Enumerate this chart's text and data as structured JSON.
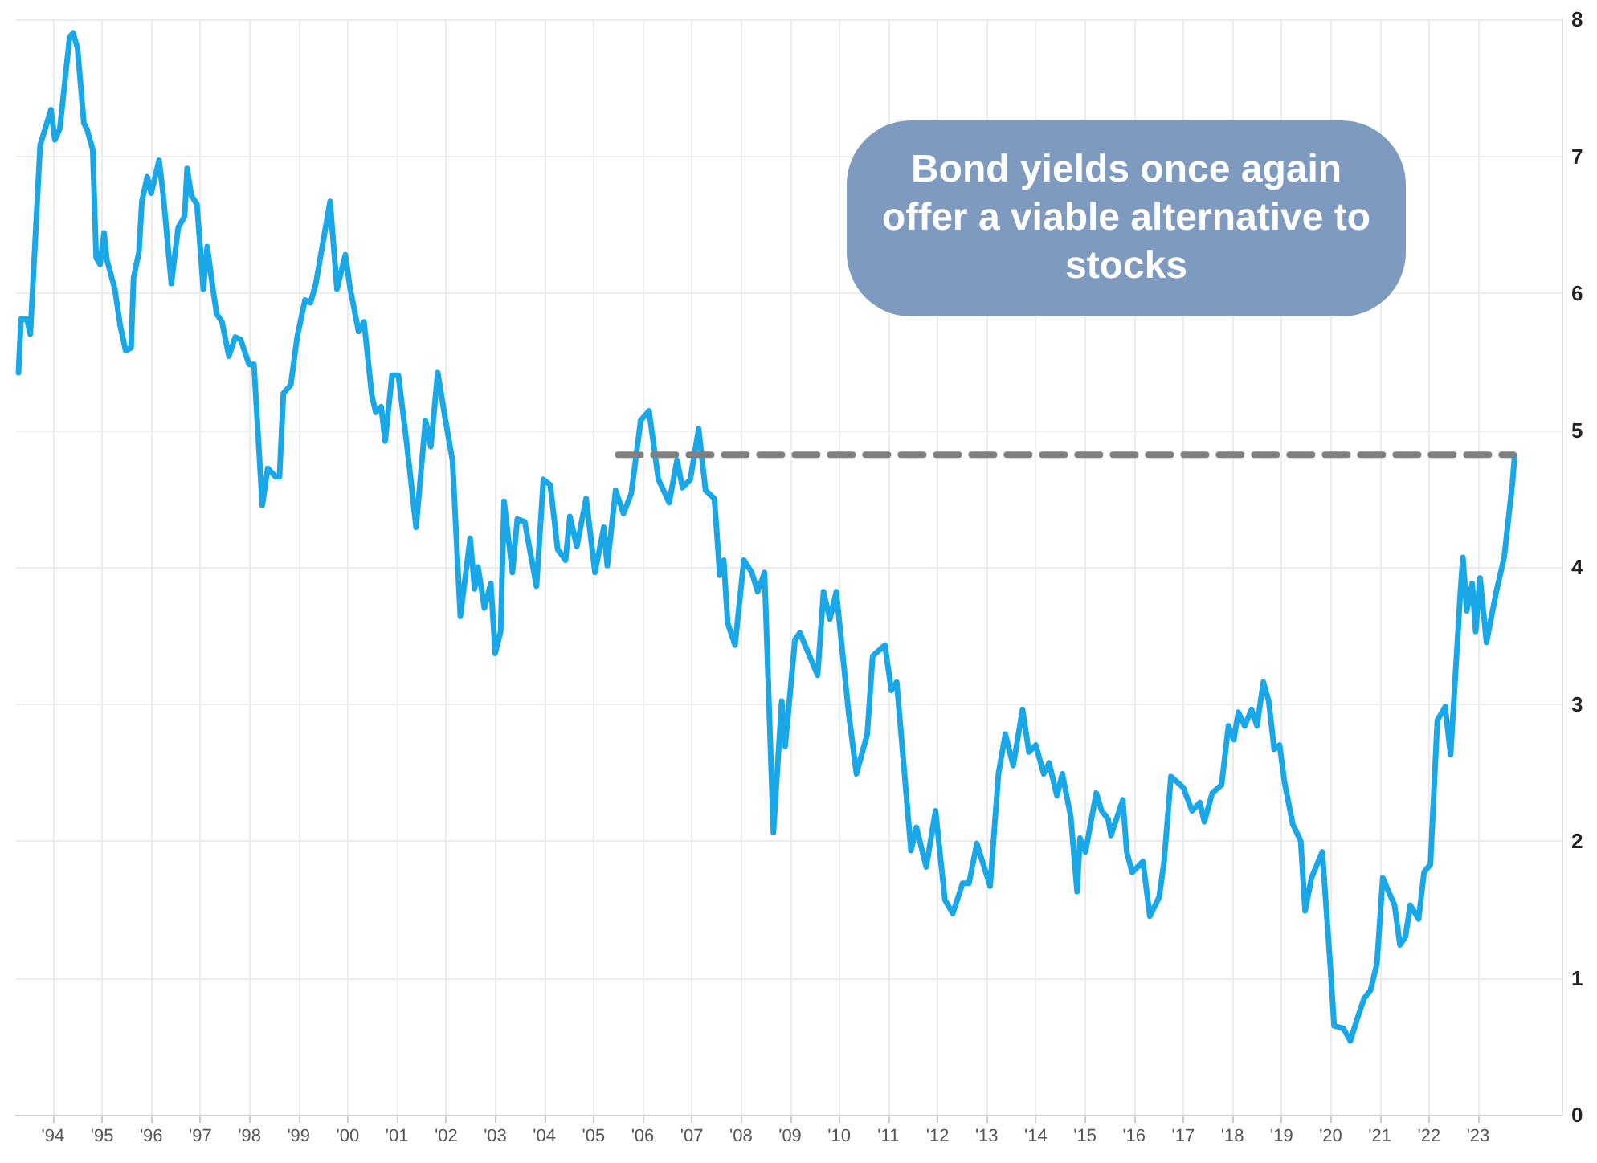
{
  "chart_data": {
    "type": "line",
    "annotations": [
      "Bond yields once again offer a viable alternative to stocks"
    ],
    "xlim": [
      1993.25,
      2024.7
    ],
    "xticks": [
      {
        "value": 1994,
        "label": "'94"
      },
      {
        "value": 1995,
        "label": "'95"
      },
      {
        "value": 1996,
        "label": "'96"
      },
      {
        "value": 1997,
        "label": "'97"
      },
      {
        "value": 1998,
        "label": "'98"
      },
      {
        "value": 1999,
        "label": "'99"
      },
      {
        "value": 2000,
        "label": "'00"
      },
      {
        "value": 2001,
        "label": "'01"
      },
      {
        "value": 2002,
        "label": "'02"
      },
      {
        "value": 2003,
        "label": "'03"
      },
      {
        "value": 2004,
        "label": "'04"
      },
      {
        "value": 2005,
        "label": "'05"
      },
      {
        "value": 2006,
        "label": "'06"
      },
      {
        "value": 2007,
        "label": "'07"
      },
      {
        "value": 2008,
        "label": "'08"
      },
      {
        "value": 2009,
        "label": "'09"
      },
      {
        "value": 2010,
        "label": "'10"
      },
      {
        "value": 2011,
        "label": "'11"
      },
      {
        "value": 2012,
        "label": "'12"
      },
      {
        "value": 2013,
        "label": "'13"
      },
      {
        "value": 2014,
        "label": "'14"
      },
      {
        "value": 2015,
        "label": "'15"
      },
      {
        "value": 2016,
        "label": "'16"
      },
      {
        "value": 2017,
        "label": "'17"
      },
      {
        "value": 2018,
        "label": "'18"
      },
      {
        "value": 2019,
        "label": "'19"
      },
      {
        "value": 2020,
        "label": "'20"
      },
      {
        "value": 2021,
        "label": "'21"
      },
      {
        "value": 2022,
        "label": "'22"
      },
      {
        "value": 2023,
        "label": "'23"
      }
    ],
    "ylim": [
      0,
      8
    ],
    "yticks": [
      0,
      1,
      2,
      3,
      4,
      5,
      6,
      7,
      8
    ],
    "grid": true,
    "series": [
      {
        "color": "#1aa7e8",
        "x": [
          1993.3,
          1993.35,
          1993.47,
          1993.54,
          1993.74,
          1993.96,
          1994.04,
          1994.14,
          1994.34,
          1994.41,
          1994.5,
          1994.63,
          1994.69,
          1994.81,
          1994.88,
          1994.96,
          1995.04,
          1995.1,
          1995.26,
          1995.37,
          1995.48,
          1995.59,
          1995.64,
          1995.75,
          1995.81,
          1995.92,
          1996.0,
          1996.16,
          1996.24,
          1996.41,
          1996.55,
          1996.68,
          1996.73,
          1996.82,
          1996.93,
          1997.06,
          1997.14,
          1997.24,
          1997.33,
          1997.44,
          1997.58,
          1997.71,
          1997.82,
          1997.99,
          1998.09,
          1998.26,
          1998.37,
          1998.53,
          1998.61,
          1998.69,
          1998.84,
          1998.97,
          1999.13,
          1999.24,
          1999.35,
          1999.64,
          1999.78,
          1999.95,
          2000.05,
          2000.22,
          2000.33,
          2000.49,
          2000.57,
          2000.68,
          2000.76,
          2000.9,
          2001.03,
          2001.2,
          2001.39,
          2001.58,
          2001.69,
          2001.83,
          2001.98,
          2002.13,
          2002.29,
          2002.49,
          2002.58,
          2002.65,
          2002.78,
          2002.91,
          2003.0,
          2003.11,
          2003.18,
          2003.35,
          2003.45,
          2003.6,
          2003.84,
          2003.98,
          2004.12,
          2004.27,
          2004.43,
          2004.52,
          2004.66,
          2004.85,
          2005.03,
          2005.21,
          2005.28,
          2005.45,
          2005.61,
          2005.77,
          2005.96,
          2006.13,
          2006.32,
          2006.54,
          2006.7,
          2006.81,
          2006.97,
          2007.14,
          2007.28,
          2007.46,
          2007.57,
          2007.65,
          2007.73,
          2007.88,
          2008.06,
          2008.22,
          2008.34,
          2008.48,
          2008.66,
          2008.83,
          2008.9,
          2009.1,
          2009.2,
          2009.42,
          2009.56,
          2009.68,
          2009.81,
          2009.94,
          2010.19,
          2010.35,
          2010.57,
          2010.68,
          2010.93,
          2011.06,
          2011.17,
          2011.46,
          2011.57,
          2011.77,
          2011.96,
          2012.15,
          2012.31,
          2012.51,
          2012.64,
          2012.8,
          2013.07,
          2013.24,
          2013.38,
          2013.54,
          2013.73,
          2013.86,
          2014.0,
          2014.16,
          2014.27,
          2014.43,
          2014.54,
          2014.71,
          2014.84,
          2014.9,
          2015.01,
          2015.23,
          2015.34,
          2015.47,
          2015.53,
          2015.77,
          2015.85,
          2015.96,
          2016.18,
          2016.32,
          2016.51,
          2016.61,
          2016.75,
          2017.0,
          2017.18,
          2017.34,
          2017.43,
          2017.59,
          2017.78,
          2017.92,
          2018.03,
          2018.12,
          2018.25,
          2018.39,
          2018.5,
          2018.63,
          2018.74,
          2018.85,
          2018.96,
          2019.06,
          2019.23,
          2019.39,
          2019.48,
          2019.61,
          2019.83,
          2019.99,
          2020.07,
          2020.26,
          2020.4,
          2020.53,
          2020.68,
          2020.81,
          2020.94,
          2021.06,
          2021.3,
          2021.41,
          2021.52,
          2021.62,
          2021.79,
          2021.9,
          2022.03,
          2022.17,
          2022.33,
          2022.44,
          2022.64,
          2022.69,
          2022.77,
          2022.88,
          2022.95,
          2023.04,
          2023.17,
          2023.37,
          2023.53,
          2023.7,
          2023.74
        ],
        "values": [
          5.42,
          5.81,
          5.81,
          5.7,
          7.08,
          7.34,
          7.12,
          7.2,
          7.87,
          7.9,
          7.79,
          7.24,
          7.2,
          7.05,
          6.26,
          6.21,
          6.44,
          6.24,
          6.03,
          5.76,
          5.58,
          5.6,
          6.11,
          6.3,
          6.67,
          6.85,
          6.73,
          6.97,
          6.73,
          6.07,
          6.48,
          6.56,
          6.91,
          6.71,
          6.65,
          6.03,
          6.34,
          6.07,
          5.85,
          5.79,
          5.54,
          5.68,
          5.66,
          5.48,
          5.48,
          4.45,
          4.72,
          4.66,
          4.66,
          5.27,
          5.33,
          5.68,
          5.95,
          5.93,
          6.07,
          6.67,
          6.03,
          6.28,
          6.03,
          5.72,
          5.79,
          5.25,
          5.13,
          5.17,
          4.92,
          5.4,
          5.4,
          4.9,
          4.29,
          5.07,
          4.88,
          5.42,
          5.09,
          4.78,
          3.64,
          4.21,
          3.84,
          4.0,
          3.7,
          3.88,
          3.37,
          3.53,
          4.48,
          3.96,
          4.35,
          4.33,
          3.86,
          4.64,
          4.6,
          4.13,
          4.05,
          4.37,
          4.15,
          4.5,
          3.96,
          4.29,
          4.01,
          4.56,
          4.39,
          4.54,
          5.07,
          5.14,
          4.64,
          4.47,
          4.78,
          4.58,
          4.64,
          5.01,
          4.56,
          4.5,
          3.94,
          4.05,
          3.59,
          3.43,
          4.05,
          3.96,
          3.82,
          3.96,
          2.06,
          3.02,
          2.69,
          3.47,
          3.52,
          3.33,
          3.21,
          3.82,
          3.62,
          3.82,
          2.94,
          2.49,
          2.78,
          3.35,
          3.43,
          3.1,
          3.16,
          1.93,
          2.1,
          1.81,
          2.22,
          1.57,
          1.47,
          1.69,
          1.69,
          1.98,
          1.67,
          2.49,
          2.78,
          2.55,
          2.96,
          2.65,
          2.7,
          2.49,
          2.57,
          2.33,
          2.49,
          2.18,
          1.63,
          2.02,
          1.92,
          2.35,
          2.22,
          2.16,
          2.04,
          2.3,
          1.92,
          1.77,
          1.85,
          1.45,
          1.59,
          1.85,
          2.47,
          2.39,
          2.22,
          2.28,
          2.14,
          2.35,
          2.41,
          2.84,
          2.74,
          2.94,
          2.84,
          2.96,
          2.84,
          3.16,
          3.02,
          2.67,
          2.7,
          2.43,
          2.12,
          2.0,
          1.49,
          1.73,
          1.92,
          1.1,
          0.65,
          0.63,
          0.54,
          0.69,
          0.85,
          0.91,
          1.1,
          1.73,
          1.53,
          1.24,
          1.3,
          1.53,
          1.43,
          1.77,
          1.83,
          2.88,
          2.98,
          2.63,
          3.82,
          4.07,
          3.68,
          3.88,
          3.53,
          3.92,
          3.45,
          3.82,
          4.07,
          4.62,
          4.8
        ]
      },
      {
        "color": "#808080",
        "line_style": "dashed",
        "x": [
          2005.5,
          2023.72
        ],
        "values": [
          4.82,
          4.82
        ]
      }
    ]
  }
}
